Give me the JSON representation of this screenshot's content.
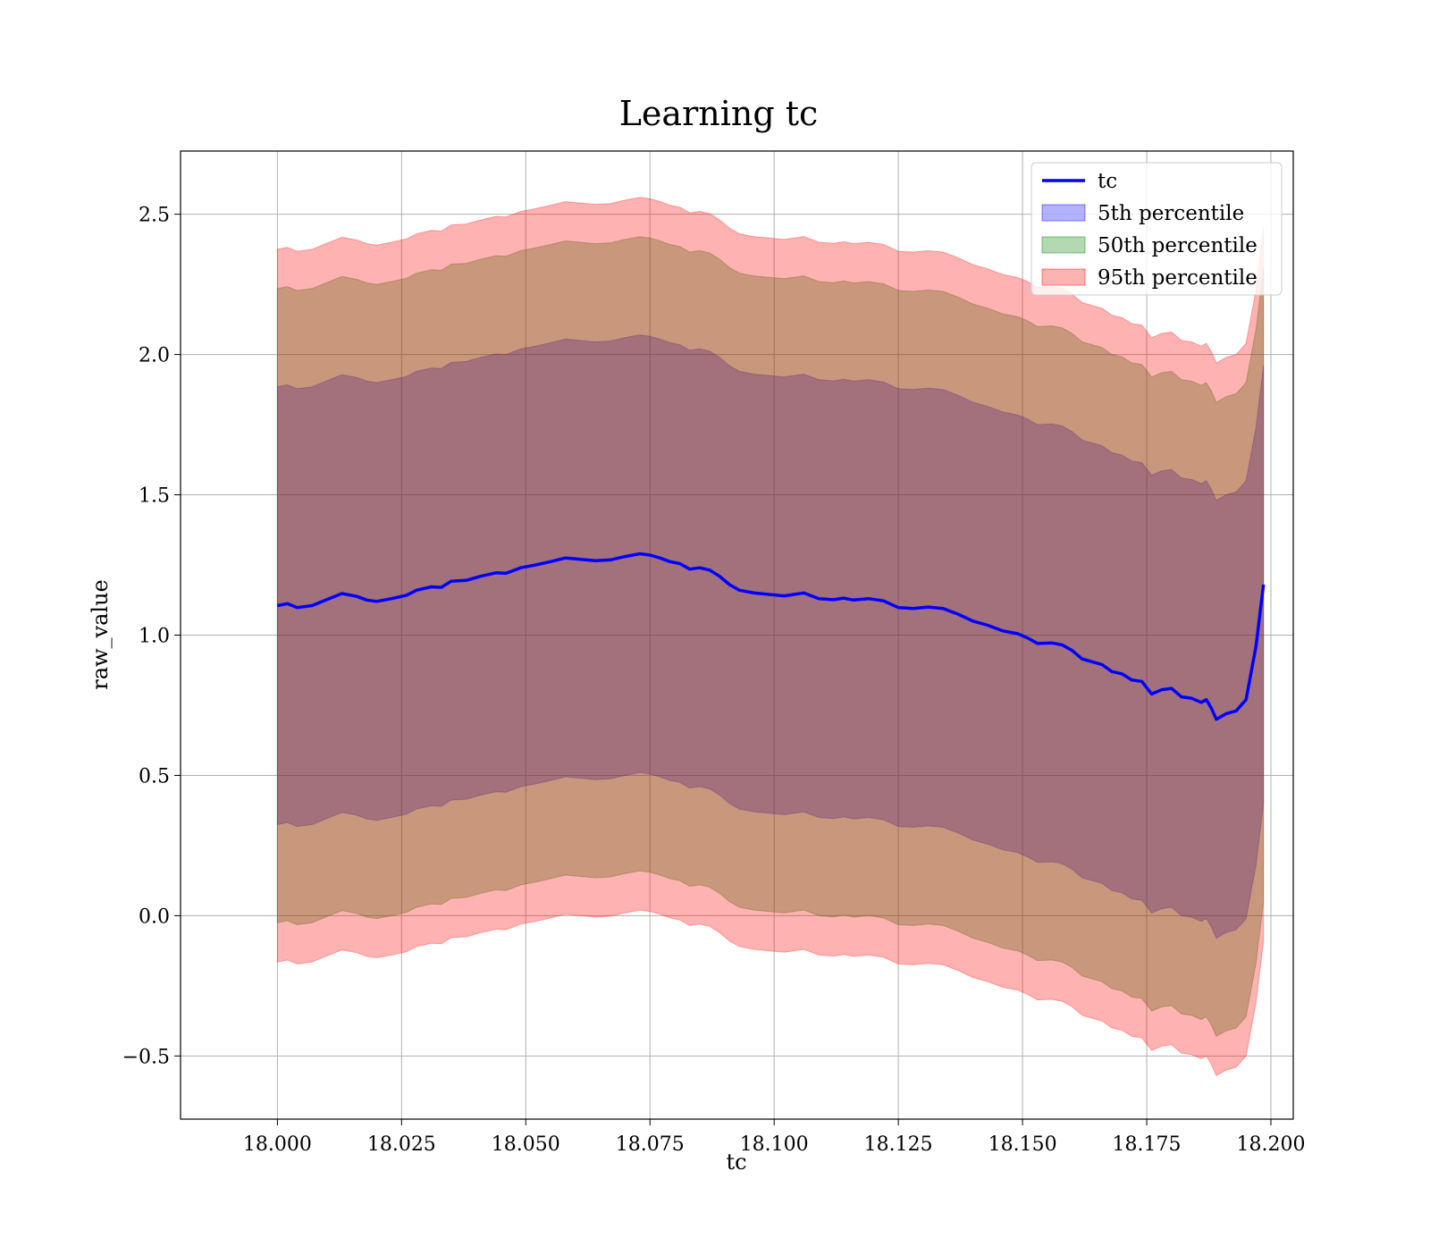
{
  "chart_data": {
    "type": "line",
    "title": "Learning tc",
    "xlabel": "tc",
    "ylabel": "raw_value",
    "xlim": [
      17.9805,
      18.2045
    ],
    "ylim": [
      -0.725,
      2.725
    ],
    "xticks": [
      18.0,
      18.025,
      18.05,
      18.075,
      18.1,
      18.125,
      18.15,
      18.175,
      18.2
    ],
    "xtick_labels": [
      "18.000",
      "18.025",
      "18.050",
      "18.075",
      "18.100",
      "18.125",
      "18.150",
      "18.175",
      "18.200"
    ],
    "yticks": [
      -0.5,
      0.0,
      0.5,
      1.0,
      1.5,
      2.0,
      2.5
    ],
    "ytick_labels": [
      "−0.5",
      "0.0",
      "0.5",
      "1.0",
      "1.5",
      "2.0",
      "2.5"
    ],
    "grid": true,
    "legend_position": "top-right",
    "x": [
      18.0,
      18.002,
      18.004,
      18.007,
      18.01,
      18.013,
      18.016,
      18.018,
      18.02,
      18.023,
      18.026,
      18.028,
      18.031,
      18.033,
      18.035,
      18.038,
      18.041,
      18.044,
      18.046,
      18.049,
      18.052,
      18.055,
      18.058,
      18.061,
      18.064,
      18.067,
      18.07,
      18.073,
      18.075,
      18.077,
      18.079,
      18.081,
      18.083,
      18.085,
      18.087,
      18.089,
      18.091,
      18.093,
      18.096,
      18.099,
      18.102,
      18.104,
      18.106,
      18.109,
      18.112,
      18.114,
      18.116,
      18.119,
      18.122,
      18.125,
      18.128,
      18.131,
      18.134,
      18.137,
      18.14,
      18.143,
      18.146,
      18.149,
      18.151,
      18.153,
      18.156,
      18.158,
      18.16,
      18.162,
      18.164,
      18.166,
      18.168,
      18.17,
      18.172,
      18.174,
      18.176,
      18.178,
      18.18,
      18.182,
      18.184,
      18.186,
      18.187,
      18.188,
      18.189,
      18.191,
      18.193,
      18.195,
      18.197,
      18.1985
    ],
    "series": [
      {
        "name": "tc",
        "color": "#0000ff",
        "values": [
          1.105,
          1.112,
          1.098,
          1.105,
          1.127,
          1.148,
          1.138,
          1.125,
          1.12,
          1.13,
          1.142,
          1.16,
          1.172,
          1.17,
          1.192,
          1.195,
          1.21,
          1.222,
          1.22,
          1.24,
          1.25,
          1.262,
          1.275,
          1.27,
          1.265,
          1.268,
          1.28,
          1.29,
          1.285,
          1.275,
          1.262,
          1.255,
          1.235,
          1.24,
          1.232,
          1.21,
          1.18,
          1.16,
          1.15,
          1.145,
          1.14,
          1.145,
          1.15,
          1.13,
          1.126,
          1.132,
          1.125,
          1.13,
          1.122,
          1.098,
          1.095,
          1.1,
          1.095,
          1.075,
          1.05,
          1.035,
          1.015,
          1.005,
          0.99,
          0.97,
          0.972,
          0.965,
          0.945,
          0.915,
          0.905,
          0.895,
          0.87,
          0.862,
          0.84,
          0.835,
          0.79,
          0.805,
          0.81,
          0.78,
          0.775,
          0.76,
          0.77,
          0.74,
          0.7,
          0.72,
          0.73,
          0.77,
          0.96,
          1.18
        ]
      }
    ],
    "bands": [
      {
        "name": "5th percentile",
        "color": "#0000ff",
        "alpha": 0.3,
        "halfwidth": 0.78
      },
      {
        "name": "50th percentile",
        "color": "#008000",
        "alpha": 0.3,
        "halfwidth": 1.13
      },
      {
        "name": "95th percentile",
        "color": "#ff0000",
        "alpha": 0.3,
        "halfwidth": 1.27
      }
    ]
  }
}
